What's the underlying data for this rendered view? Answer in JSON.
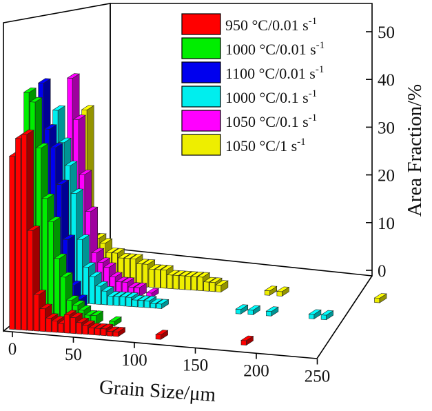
{
  "chart_data": {
    "type": "bar",
    "subtype": "3d-bar-histogram",
    "title": "",
    "xlabel": "Grain Size/μm",
    "ylabel": "Area Fraction/%",
    "x_ticks": [
      "0",
      "50",
      "100",
      "150",
      "200",
      "250"
    ],
    "y_ticks": [
      "0",
      "10",
      "20",
      "30",
      "40",
      "50"
    ],
    "xlim": [
      0,
      250
    ],
    "ylim": [
      0,
      55
    ],
    "legend_position": "top-right",
    "grid": false,
    "series": [
      {
        "label_main": "950 °C/0.01 s",
        "label_sup": "-1",
        "color": "#ff0000",
        "x": [
          2.5,
          7.5,
          12.5,
          17.5,
          22.5,
          27.5,
          32.5,
          37.5,
          42.5,
          47.5,
          52.5,
          57.5,
          62.5,
          67.5,
          72.5,
          77.5,
          82.5,
          87.5,
          122.5,
          192.5
        ],
        "values": [
          38,
          42,
          43,
          22,
          8,
          5,
          3,
          2.5,
          2,
          4,
          3.5,
          2.5,
          2,
          1.5,
          1.5,
          1.5,
          1,
          1,
          1,
          1
        ]
      },
      {
        "label_main": "1000 °C/0.01 s",
        "label_sup": "-1",
        "color": "#00ee00",
        "x": [
          2.5,
          7.5,
          12.5,
          17.5,
          22.5,
          27.5,
          32.5,
          37.5,
          42.5,
          47.5,
          52.5,
          57.5,
          72.5
        ],
        "values": [
          50,
          48,
          38,
          27,
          22,
          14,
          10,
          5,
          4,
          3,
          2,
          2,
          1
        ]
      },
      {
        "label_main": "1100 °C/0.01 s",
        "label_sup": "-1",
        "color": "#0000ee",
        "x": [
          2.5,
          7.5,
          12.5,
          17.5,
          22.5,
          27.5,
          32.5
        ],
        "values": [
          50,
          40,
          36,
          28,
          16,
          6,
          3
        ]
      },
      {
        "label_main": "1000 °C/0.1 s",
        "label_sup": "-1",
        "color": "#00eeee",
        "x": [
          2.5,
          7.5,
          12.5,
          17.5,
          22.5,
          27.5,
          32.5,
          37.5,
          42.5,
          47.5,
          52.5,
          57.5,
          62.5,
          67.5,
          72.5,
          77.5,
          82.5,
          87.5,
          152.5,
          162.5,
          177.5,
          212.5,
          222.5
        ],
        "values": [
          42,
          35,
          30,
          24,
          14,
          8,
          6,
          4,
          3,
          2,
          2,
          2,
          2,
          1.5,
          1.5,
          1.5,
          1,
          1,
          1,
          1,
          1,
          1,
          1
        ]
      },
      {
        "label_main": "1050 °C/0.1 s",
        "label_sup": "-1",
        "color": "#ff00ff",
        "x": [
          2.5,
          7.5,
          12.5,
          17.5,
          22.5,
          27.5,
          32.5,
          37.5,
          42.5,
          47.5,
          52.5,
          57.5,
          67.5
        ],
        "values": [
          47,
          38,
          26,
          18,
          9,
          7,
          6,
          4,
          3,
          3,
          2,
          2,
          1
        ]
      },
      {
        "label_main": "1050 °C/1 s",
        "label_sup": "-1",
        "color": "#eeee00",
        "x": [
          2.5,
          7.5,
          12.5,
          17.5,
          22.5,
          27.5,
          32.5,
          37.5,
          42.5,
          47.5,
          52.5,
          57.5,
          62.5,
          67.5,
          72.5,
          77.5,
          82.5,
          87.5,
          92.5,
          97.5,
          102.5,
          107.5,
          112.5,
          152.5,
          162.5,
          242.5
        ],
        "values": [
          38,
          10,
          10,
          9,
          7,
          7,
          6,
          6,
          6,
          5,
          5,
          4,
          4,
          4,
          3,
          3,
          3,
          3,
          3,
          3,
          2,
          2,
          1.5,
          1,
          1,
          1
        ]
      }
    ]
  }
}
